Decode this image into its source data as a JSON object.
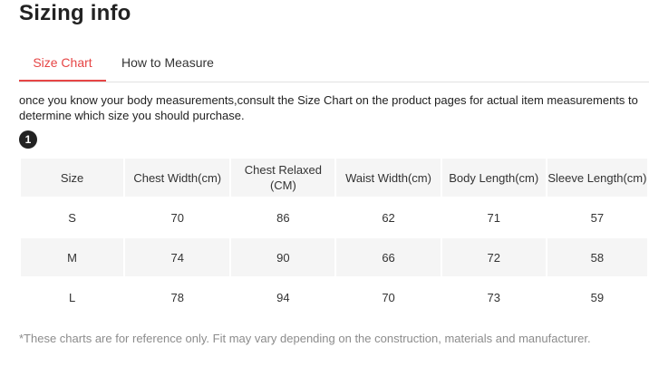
{
  "title": "Sizing info",
  "tabs": [
    {
      "label": "Size Chart",
      "active": true
    },
    {
      "label": "How to Measure",
      "active": false
    }
  ],
  "description": "once you know your body measurements,consult the Size Chart on the product pages for actual item measurements to determine which size you should purchase.",
  "step_badge": "1",
  "table": {
    "headers": [
      "Size",
      "Chest Width(cm)",
      "Chest Relaxed (CM)",
      "Waist Width(cm)",
      "Body Length(cm)",
      "Sleeve Length(cm)"
    ],
    "rows": [
      [
        "S",
        "70",
        "86",
        "62",
        "71",
        "57"
      ],
      [
        "M",
        "74",
        "90",
        "66",
        "72",
        "58"
      ],
      [
        "L",
        "78",
        "94",
        "70",
        "73",
        "59"
      ]
    ]
  },
  "note": "*These charts are for reference only. Fit may vary depending on the construction, materials and manufacturer.",
  "colors": {
    "accent": "#e64545",
    "header_bg": "#f5f5f5",
    "note_text": "#8c8c8c"
  }
}
